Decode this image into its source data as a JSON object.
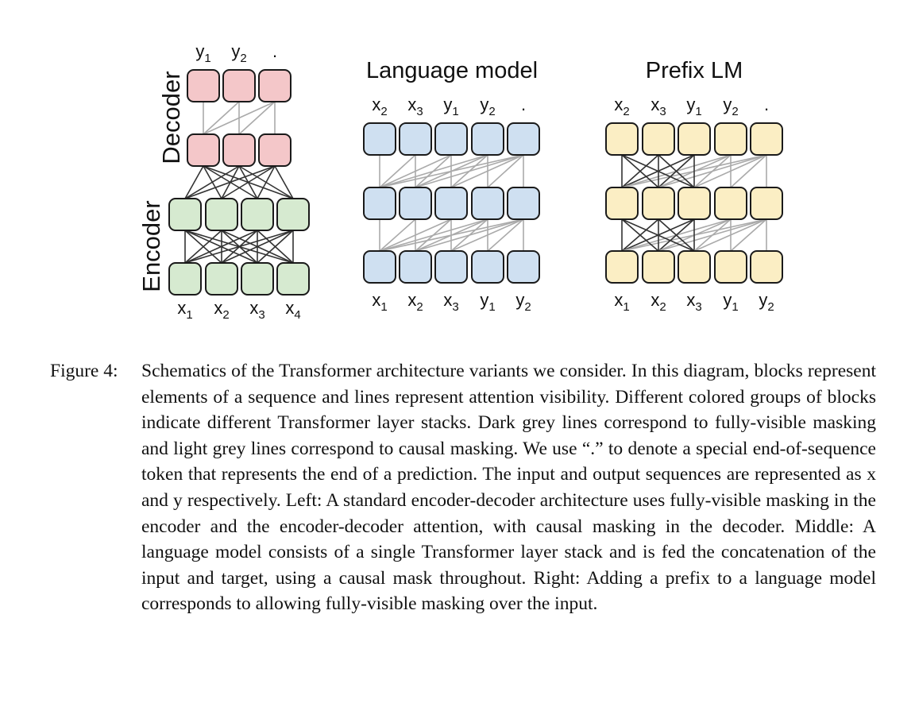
{
  "figure": {
    "panels": [
      {
        "id": "encdec",
        "title": "",
        "side_labels": {
          "decoder": "Decoder",
          "encoder": "Encoder"
        },
        "top_tokens": [
          {
            "base": "y",
            "sub": "1"
          },
          {
            "base": "y",
            "sub": "2"
          },
          {
            "base": ".",
            "sub": ""
          }
        ],
        "bottom_tokens": [
          {
            "base": "x",
            "sub": "1"
          },
          {
            "base": "x",
            "sub": "2"
          },
          {
            "base": "x",
            "sub": "3"
          },
          {
            "base": "x",
            "sub": "4"
          }
        ],
        "colors": {
          "decoder_fill": "#f4c7c9",
          "encoder_fill": "#d6ead0"
        }
      },
      {
        "id": "lm",
        "title": "Language model",
        "top_tokens": [
          {
            "base": "x",
            "sub": "2"
          },
          {
            "base": "x",
            "sub": "3"
          },
          {
            "base": "y",
            "sub": "1"
          },
          {
            "base": "y",
            "sub": "2"
          },
          {
            "base": ".",
            "sub": ""
          }
        ],
        "bottom_tokens": [
          {
            "base": "x",
            "sub": "1"
          },
          {
            "base": "x",
            "sub": "2"
          },
          {
            "base": "x",
            "sub": "3"
          },
          {
            "base": "y",
            "sub": "1"
          },
          {
            "base": "y",
            "sub": "2"
          }
        ],
        "colors": {
          "fill": "#cfe0f1"
        }
      },
      {
        "id": "prefix",
        "title": "Prefix LM",
        "top_tokens": [
          {
            "base": "x",
            "sub": "2"
          },
          {
            "base": "x",
            "sub": "3"
          },
          {
            "base": "y",
            "sub": "1"
          },
          {
            "base": "y",
            "sub": "2"
          },
          {
            "base": ".",
            "sub": ""
          }
        ],
        "bottom_tokens": [
          {
            "base": "x",
            "sub": "1"
          },
          {
            "base": "x",
            "sub": "2"
          },
          {
            "base": "x",
            "sub": "3"
          },
          {
            "base": "y",
            "sub": "1"
          },
          {
            "base": "y",
            "sub": "2"
          }
        ],
        "colors": {
          "fill": "#fbeec4"
        }
      }
    ],
    "line_colors": {
      "fully_visible": "#333333",
      "causal": "#aaaaaa"
    }
  },
  "caption": {
    "label": "Figure 4:",
    "text": "Schematics of the Transformer architecture variants we consider. In this diagram, blocks represent elements of a sequence and lines represent attention visibility. Different colored groups of blocks indicate different Transformer layer stacks. Dark grey lines correspond to fully-visible masking and light grey lines correspond to causal masking. We use “.” to denote a special end-of-sequence token that represents the end of a prediction. The input and output sequences are represented as x and y respectively. Left: A standard encoder-decoder architecture uses fully-visible masking in the encoder and the encoder-decoder attention, with causal masking in the decoder. Middle: A language model consists of a single Transformer layer stack and is fed the concatenation of the input and target, using a causal mask throughout. Right: Adding a prefix to a language model corresponds to allowing fully-visible masking over the input."
  }
}
